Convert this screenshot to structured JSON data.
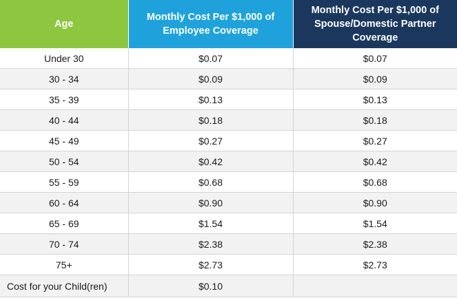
{
  "headers": {
    "age": "Age",
    "employee": "Monthly Cost Per $1,000 of Employee Coverage",
    "spouse": "Monthly Cost Per $1,000 of Spouse/Domestic Partner Coverage"
  },
  "colors": {
    "age_header": "#8dc63f",
    "employee_header": "#1fa2dc",
    "spouse_header": "#1b375d",
    "stripe": "#f2f2f2"
  },
  "rows": [
    {
      "age": "Under 30",
      "employee": "$0.07",
      "spouse": "$0.07"
    },
    {
      "age": "30 - 34",
      "employee": "$0.09",
      "spouse": "$0.09"
    },
    {
      "age": "35 - 39",
      "employee": "$0.13",
      "spouse": "$0.13"
    },
    {
      "age": "40 - 44",
      "employee": "$0.18",
      "spouse": "$0.18"
    },
    {
      "age": "45 - 49",
      "employee": "$0.27",
      "spouse": "$0.27"
    },
    {
      "age": "50 - 54",
      "employee": "$0.42",
      "spouse": "$0.42"
    },
    {
      "age": "55 - 59",
      "employee": "$0.68",
      "spouse": "$0.68"
    },
    {
      "age": "60 - 64",
      "employee": "$0.90",
      "spouse": "$0.90"
    },
    {
      "age": "65 - 69",
      "employee": "$1.54",
      "spouse": "$1.54"
    },
    {
      "age": "70 - 74",
      "employee": "$2.38",
      "spouse": "$2.38"
    },
    {
      "age": "75+",
      "employee": "$2.73",
      "spouse": "$2.73"
    }
  ],
  "child": {
    "label": "Cost for your Child(ren)",
    "employee": "$0.10",
    "spouse": ""
  }
}
